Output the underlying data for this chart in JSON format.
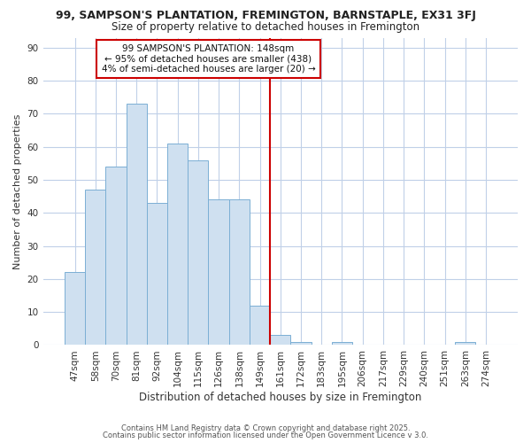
{
  "title1": "99, SAMPSON'S PLANTATION, FREMINGTON, BARNSTAPLE, EX31 3FJ",
  "title2": "Size of property relative to detached houses in Fremington",
  "xlabel": "Distribution of detached houses by size in Fremington",
  "ylabel": "Number of detached properties",
  "categories": [
    "47sqm",
    "58sqm",
    "70sqm",
    "81sqm",
    "92sqm",
    "104sqm",
    "115sqm",
    "126sqm",
    "138sqm",
    "149sqm",
    "161sqm",
    "172sqm",
    "183sqm",
    "195sqm",
    "206sqm",
    "217sqm",
    "229sqm",
    "240sqm",
    "251sqm",
    "263sqm",
    "274sqm"
  ],
  "values": [
    22,
    47,
    54,
    73,
    43,
    61,
    56,
    44,
    44,
    12,
    3,
    1,
    0,
    1,
    0,
    0,
    0,
    0,
    0,
    1,
    0
  ],
  "bar_color": "#cfe0f0",
  "bar_edge_color": "#7bafd4",
  "red_line_color": "#cc0000",
  "red_line_x": 9.5,
  "annotation_title": "99 SAMPSON'S PLANTATION: 148sqm",
  "annotation_line1": "← 95% of detached houses are smaller (438)",
  "annotation_line2": "4% of semi-detached houses are larger (20) →",
  "annotation_box_color": "#ffffff",
  "annotation_border_color": "#cc0000",
  "background_color": "#ffffff",
  "grid_color": "#c0d0e8",
  "ylim": [
    0,
    93
  ],
  "yticks": [
    0,
    10,
    20,
    30,
    40,
    50,
    60,
    70,
    80,
    90
  ],
  "footer1": "Contains HM Land Registry data © Crown copyright and database right 2025.",
  "footer2": "Contains public sector information licensed under the Open Government Licence v 3.0.",
  "title1_fontsize": 9,
  "title2_fontsize": 8.5
}
